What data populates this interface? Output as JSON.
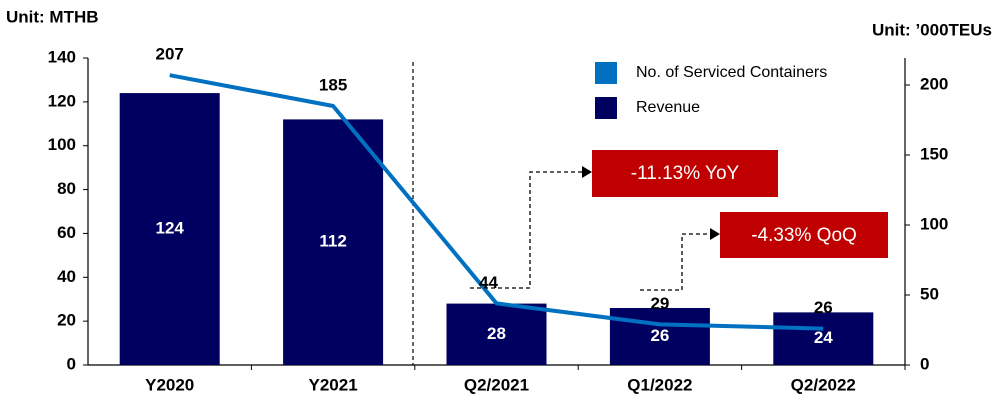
{
  "chart_data": {
    "type": "bar",
    "ylabel": "Unit: MTHB",
    "y2label": "Unit: ’000TEUs",
    "categories": [
      "Y2020",
      "Y2021",
      "Q2/2021",
      "Q1/2022",
      "Q2/2022"
    ],
    "series": [
      {
        "name": "No. of Serviced Containers",
        "type": "line",
        "axis": "y2",
        "color": "#0070c0",
        "values": [
          207,
          185,
          44,
          29,
          26
        ]
      },
      {
        "name": "Revenue",
        "type": "bar",
        "color": "#000060",
        "values": [
          124,
          112,
          28,
          26,
          24
        ]
      }
    ],
    "ylim": [
      0,
      140
    ],
    "yticks": [
      0,
      20,
      40,
      60,
      80,
      100,
      120,
      140
    ],
    "y2lim": [
      0,
      200
    ],
    "y2ticks": [
      0,
      50,
      100,
      150,
      200
    ],
    "annotations": [
      "-11.13% YoY",
      "-4.33% QoQ"
    ],
    "grid": false
  }
}
